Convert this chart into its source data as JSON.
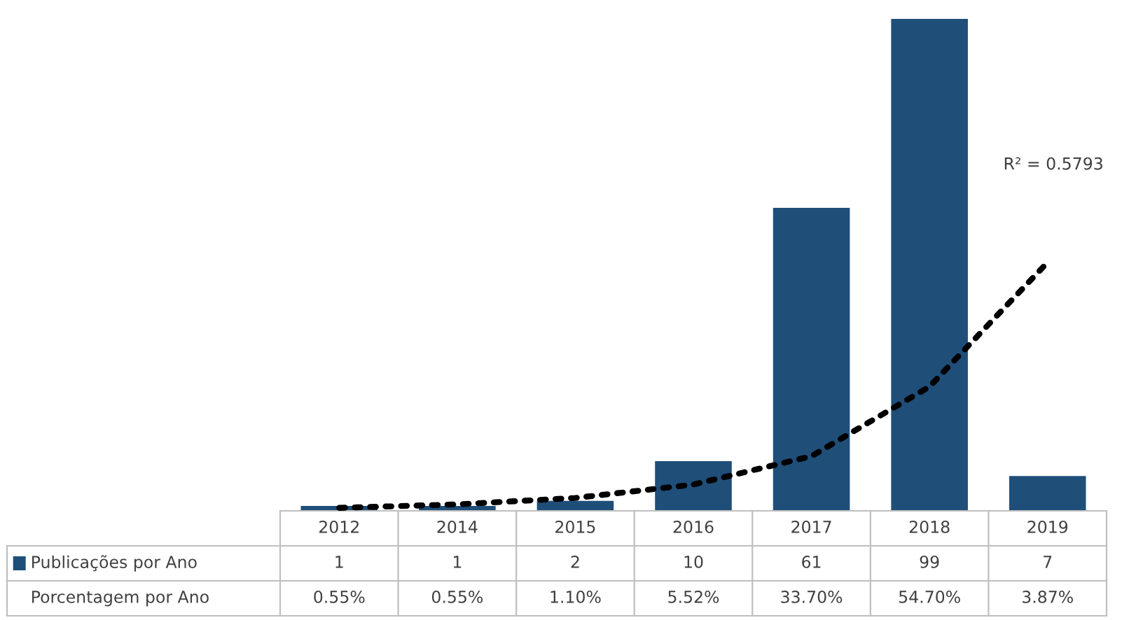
{
  "chart_data": {
    "type": "bar",
    "categories": [
      "2012",
      "2014",
      "2015",
      "2016",
      "2017",
      "2018",
      "2019"
    ],
    "series": [
      {
        "name": "Publicações por Ano",
        "color": "#1f4e79",
        "values": [
          1,
          1,
          2,
          10,
          61,
          99,
          7
        ],
        "value_labels": [
          "1",
          "1",
          "2",
          "10",
          "61",
          "99",
          "7"
        ]
      },
      {
        "type": "line",
        "color": "#000000",
        "line_style": "dotted",
        "values": [
          0.6,
          1.3,
          2.6,
          5.3,
          11,
          25,
          50
        ]
      }
    ],
    "annotations": [
      "R² = 0.5793",
      "Porcentagem por Ano",
      "0.55%",
      "0.55%",
      "1.10%",
      "5.52%",
      "33.70%",
      "54.70%",
      "3.87%"
    ],
    "ylim": [
      0,
      100
    ],
    "legend": "bottom left",
    "tick_labels": "x"
  }
}
